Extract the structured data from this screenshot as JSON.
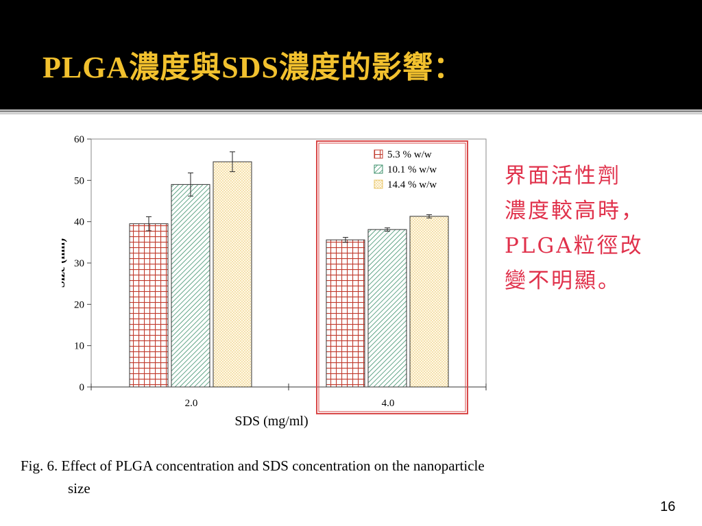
{
  "slide": {
    "title": "PLGA濃度與SDS濃度的影響：",
    "note_lines": [
      "界面活性劑",
      "濃度較高時，",
      "PLGA粒徑改",
      "變不明顯。"
    ],
    "caption_line1": "Fig. 6. Effect of PLGA concentration and SDS concentration on the nanoparticle",
    "caption_line2": "size",
    "page_number": "16"
  },
  "colors": {
    "header_bg": "#000000",
    "title": "#f2c12e",
    "note": "#e0314b",
    "highlight_box": "#d84848",
    "series_1": "#c0392b",
    "series_2": "#3a8f6a",
    "series_3": "#e8c66a"
  },
  "chart_data": {
    "type": "bar",
    "xlabel": "SDS (mg/ml)",
    "ylabel": "Size (nm)",
    "ylim": [
      0,
      60
    ],
    "yticks": [
      0,
      10,
      20,
      30,
      40,
      50,
      60
    ],
    "categories": [
      "2.0",
      "4.0"
    ],
    "series": [
      {
        "name": "5.3 % w/w",
        "values": [
          39.5,
          35.6
        ],
        "errors": [
          1.7,
          0.6
        ],
        "pattern": "grid"
      },
      {
        "name": "10.1 % w/w",
        "values": [
          49.0,
          38.1
        ],
        "errors": [
          2.8,
          0.4
        ],
        "pattern": "diagonal"
      },
      {
        "name": "14.4 % w/w",
        "values": [
          54.5,
          41.3
        ],
        "errors": [
          2.4,
          0.4
        ],
        "pattern": "dots"
      }
    ],
    "legend_position": "top-right",
    "highlight": "4.0 group boxed in red",
    "grid": false
  }
}
